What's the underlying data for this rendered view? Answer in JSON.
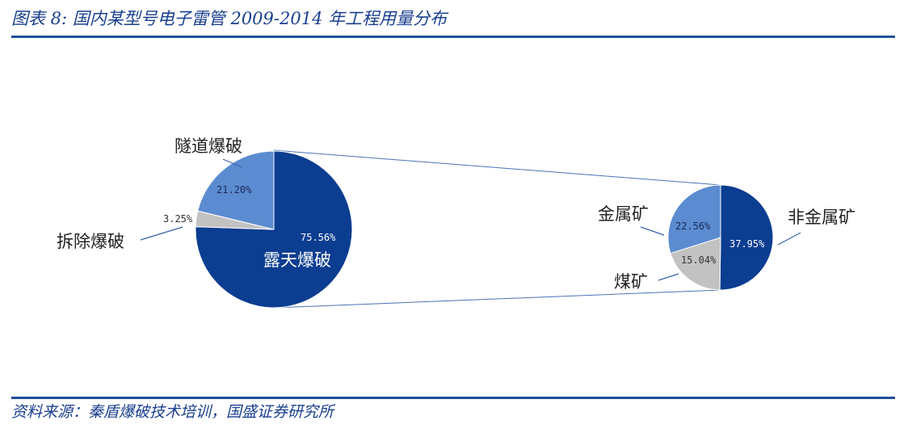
{
  "header": {
    "title": "图表 8:  国内某型号电子雷管 2009-2014 年工程用量分布"
  },
  "footer": {
    "source": "资料来源：秦盾爆破技术培训，国盛证券研究所"
  },
  "colors": {
    "dark_blue": "#0b3d91",
    "mid_blue": "#5b8bd0",
    "gray": "#c2c2c2",
    "rule": "#1f4e9a",
    "connector": "#4a72b8"
  },
  "chart_data": [
    {
      "type": "pie",
      "slices": [
        {
          "name": "露天爆破",
          "value": 75.56,
          "label": "75.56%",
          "color": "#0b3d91"
        },
        {
          "name": "拆除爆破",
          "value": 3.25,
          "label": "3.25%",
          "color": "#c2c2c2"
        },
        {
          "name": "隧道爆破",
          "value": 21.2,
          "label": "21.20%",
          "color": "#5b8bd0"
        }
      ]
    },
    {
      "type": "pie",
      "slices": [
        {
          "name": "非金属矿",
          "value": 37.95,
          "label": "37.95%",
          "color": "#0b3d91"
        },
        {
          "name": "煤矿",
          "value": 15.04,
          "label": "15.04%",
          "color": "#c2c2c2"
        },
        {
          "name": "金属矿",
          "value": 22.56,
          "label": "22.56%",
          "color": "#5b8bd0"
        }
      ]
    }
  ]
}
